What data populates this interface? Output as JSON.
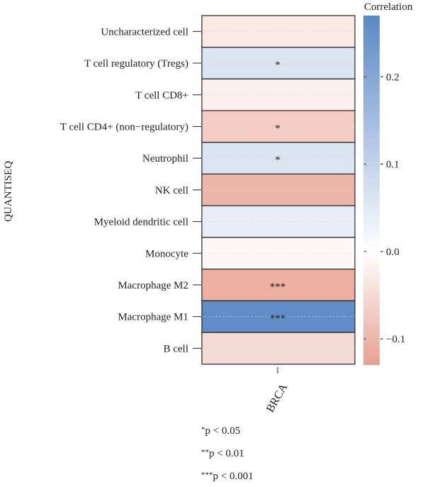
{
  "chart_data": {
    "type": "heatmap",
    "ylabel": "QUANTISEQ",
    "columns": [
      "BRCA"
    ],
    "rows": [
      {
        "label": "Uncharacterized cell",
        "value": -0.03,
        "sig": ""
      },
      {
        "label": "T cell regulatory (Tregs)",
        "value": 0.06,
        "sig": "*"
      },
      {
        "label": "T cell CD8+",
        "value": -0.02,
        "sig": ""
      },
      {
        "label": "T cell CD4+ (non−regulatory)",
        "value": -0.07,
        "sig": "*"
      },
      {
        "label": "Neutrophil",
        "value": 0.06,
        "sig": "*"
      },
      {
        "label": "NK cell",
        "value": -0.1,
        "sig": ""
      },
      {
        "label": "Myeloid dendritic cell",
        "value": 0.04,
        "sig": ""
      },
      {
        "label": "Monocyte",
        "value": -0.01,
        "sig": ""
      },
      {
        "label": "Macrophage M2",
        "value": -0.11,
        "sig": "***"
      },
      {
        "label": "Macrophage M1",
        "value": 0.26,
        "sig": "***"
      },
      {
        "label": "B cell",
        "value": -0.05,
        "sig": ""
      }
    ],
    "colorbar": {
      "title": "Correlation",
      "min": -0.13,
      "max": 0.27,
      "ticks": [
        0.2,
        0.1,
        0.0,
        -0.1
      ],
      "tick_labels": [
        "0.2",
        "0.1",
        "0.0",
        "−0.1"
      ],
      "colors": {
        "negative": "#e8a090",
        "zero": "#ffffff",
        "positive": "#5b89c6"
      }
    },
    "grid": true,
    "significance_notes": [
      {
        "stars": "*",
        "text": "p < 0.05"
      },
      {
        "stars": "**",
        "text": "p < 0.01"
      },
      {
        "stars": "***",
        "text": "p < 0.001"
      }
    ]
  }
}
